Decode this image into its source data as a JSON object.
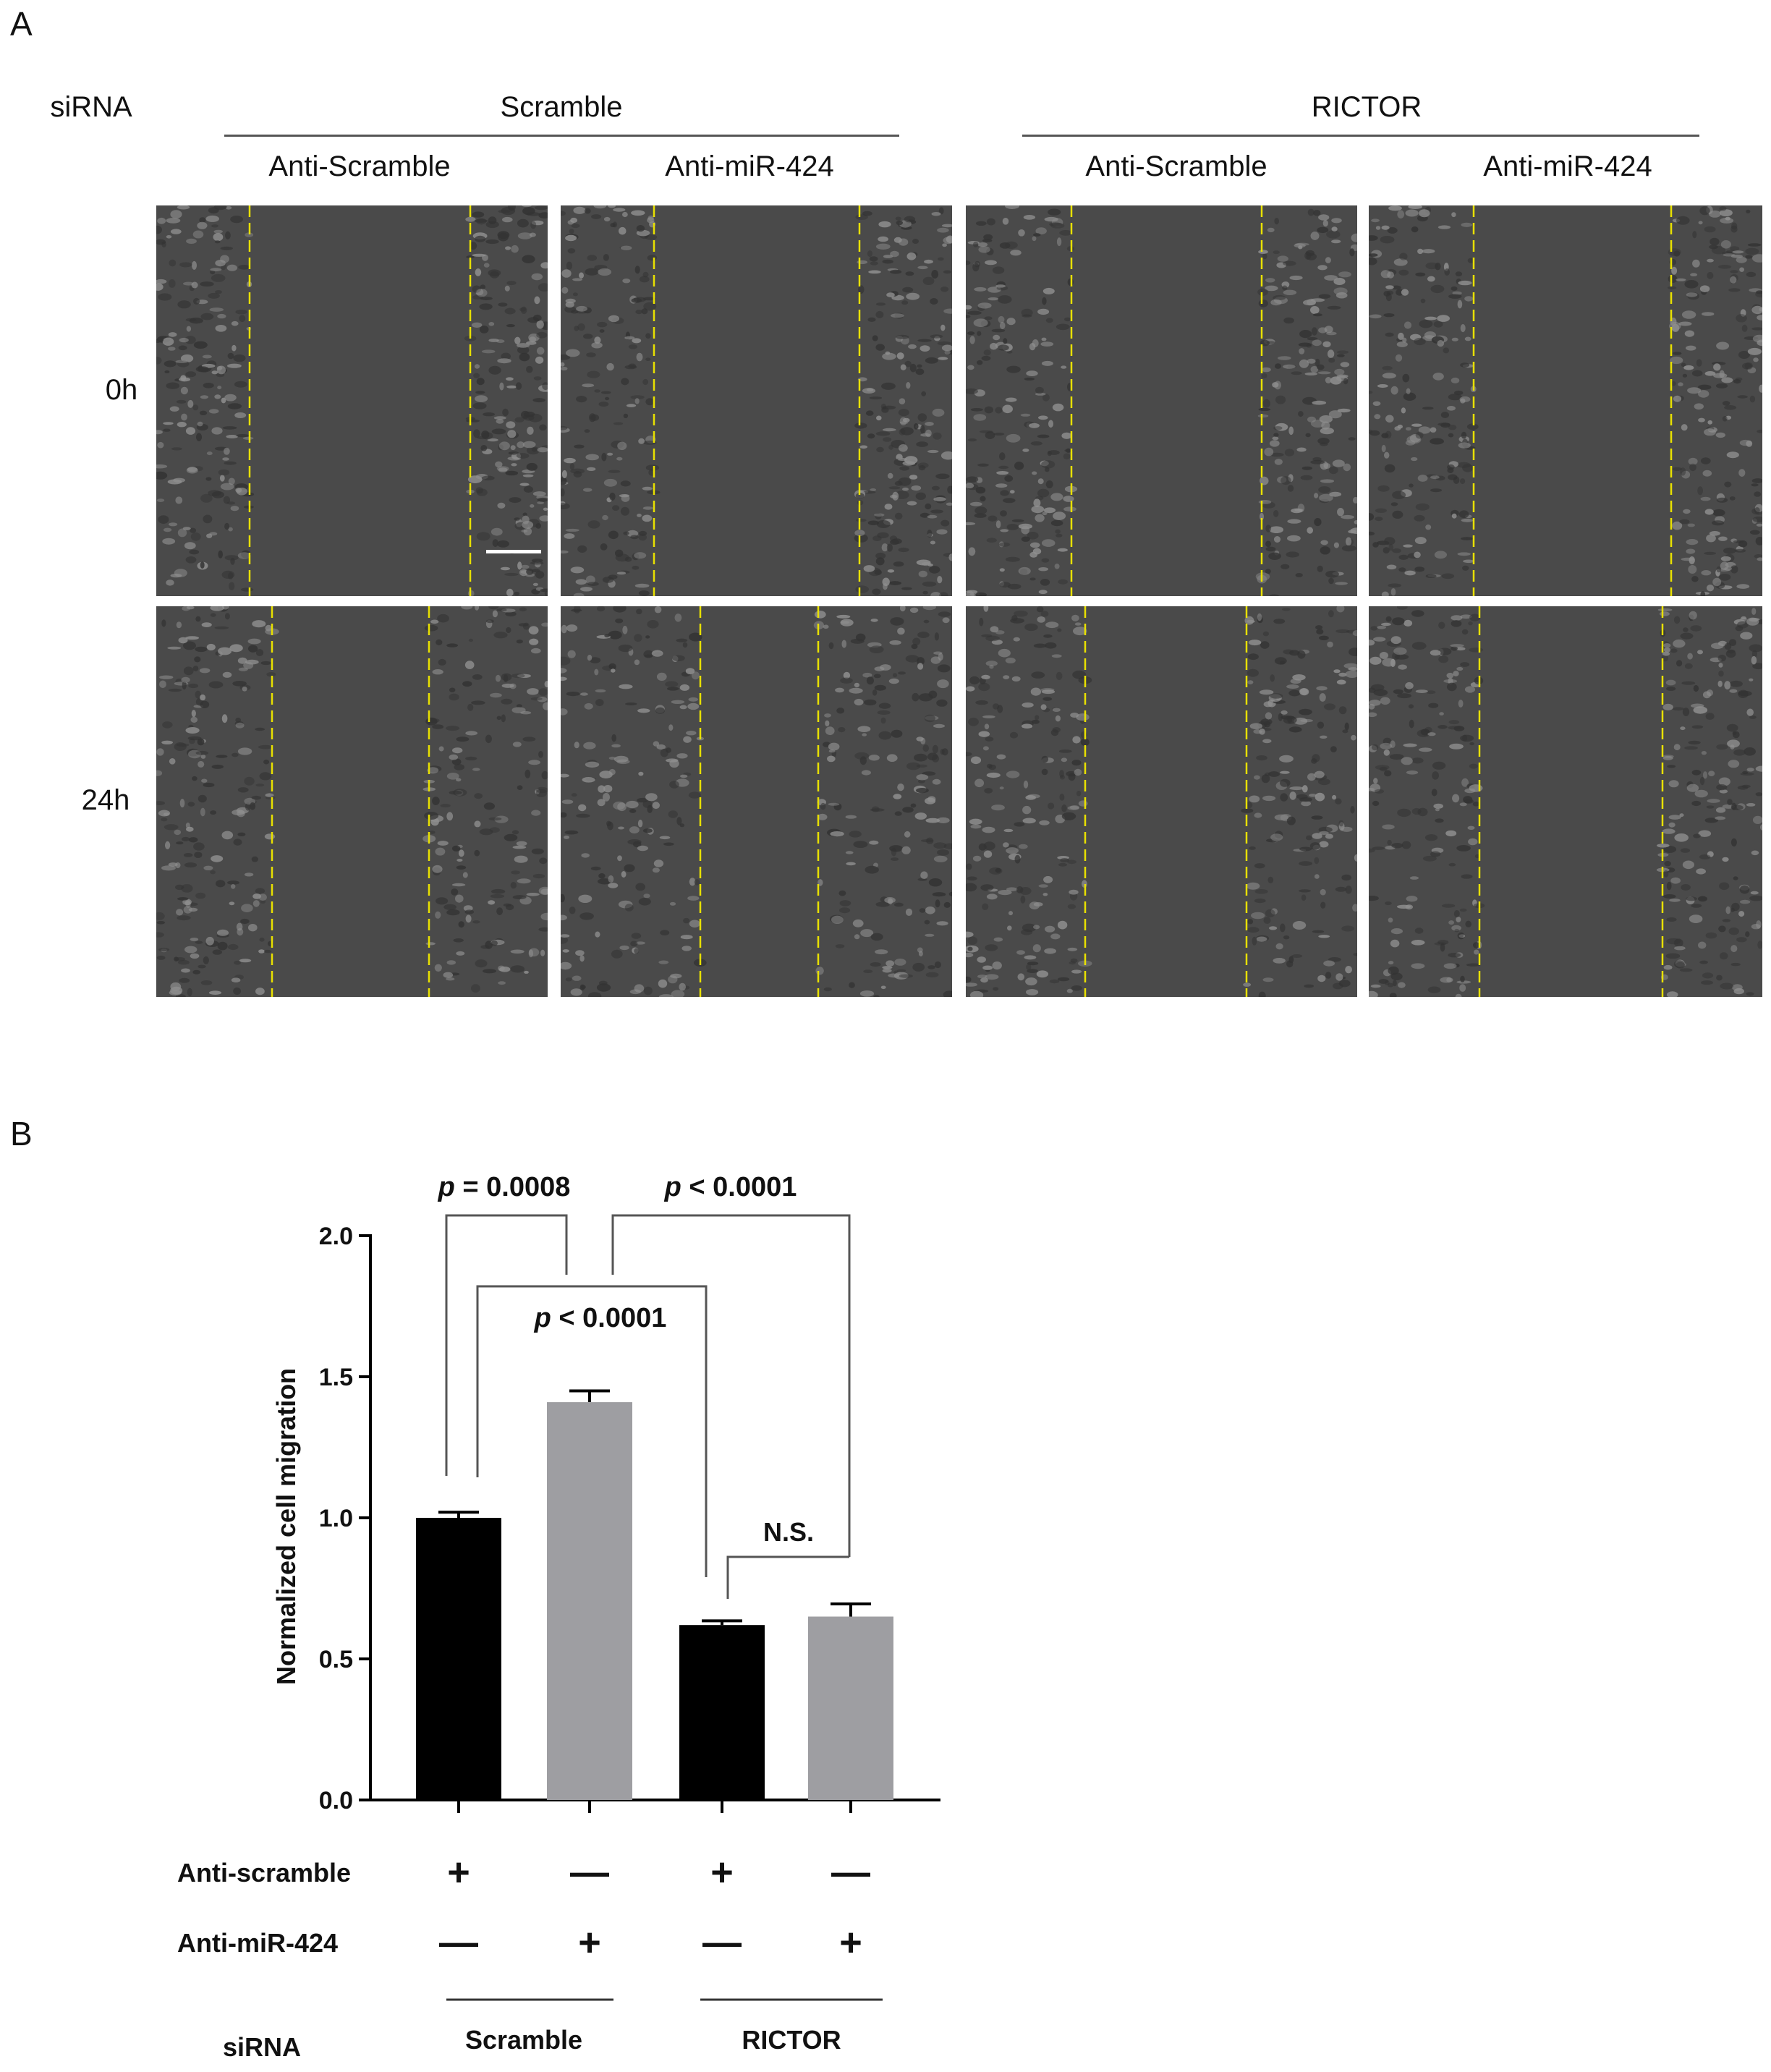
{
  "panel_a": {
    "letter": "A",
    "row_header": "siRNA",
    "groups": [
      "Scramble",
      "RICTOR"
    ],
    "column_labels": [
      "Anti-Scramble",
      "Anti-miR-424",
      "Anti-Scramble",
      "Anti-miR-424"
    ],
    "time_labels": [
      "0h",
      "24h"
    ],
    "colors": {
      "background": "#4a4a4a",
      "cells": "#8f8f8f",
      "wound_edge": "#e8e000",
      "scale_bar": "#ffffff"
    }
  },
  "panel_b": {
    "letter": "B",
    "significance": [
      {
        "italic": "p",
        "text": " = 0.0008"
      },
      {
        "italic": "p",
        "text": " < 0.0001"
      },
      {
        "italic": "p",
        "text": " < 0.0001"
      },
      {
        "italic": "",
        "text": "N.S."
      }
    ],
    "treatment_rows": [
      {
        "label": "Anti-scramble",
        "signs": [
          "+",
          "—",
          "+",
          "—"
        ]
      },
      {
        "label": "Anti-miR-424",
        "signs": [
          "—",
          "+",
          "—",
          "+"
        ]
      }
    ],
    "sirna_label": "siRNA",
    "group_labels": [
      "Scramble",
      "RICTOR"
    ]
  },
  "chart_data": {
    "type": "bar",
    "ylabel": "Normalized cell migration",
    "ylim": [
      0,
      2.0
    ],
    "yticks": [
      "0.0",
      "0.5",
      "1.0",
      "1.5",
      "2.0"
    ],
    "categories": [
      "Scramble / Anti-scramble",
      "Scramble / Anti-miR-424",
      "RICTOR / Anti-scramble",
      "RICTOR / Anti-miR-424"
    ],
    "values": [
      1.0,
      1.41,
      0.62,
      0.65
    ],
    "errors": [
      0.02,
      0.04,
      0.015,
      0.045
    ],
    "colors": [
      "#000000",
      "#9e9ea2",
      "#000000",
      "#9e9ea2"
    ],
    "grid": false,
    "legend": "none"
  }
}
